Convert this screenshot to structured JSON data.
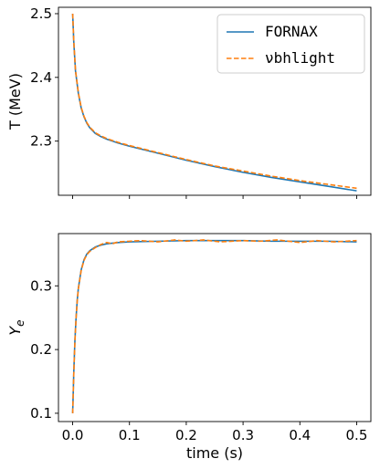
{
  "chart_data": [
    {
      "type": "line",
      "xlabel": "",
      "ylabel": "T (MeV)",
      "xlim": [
        -0.025,
        0.525
      ],
      "ylim": [
        2.215,
        2.51
      ],
      "xticks": [
        0.0,
        0.1,
        0.2,
        0.3,
        0.4,
        0.5
      ],
      "show_x_tick_labels": false,
      "yticks": [
        2.3,
        2.4,
        2.5
      ],
      "ytick_labels": [
        "2.3",
        "2.4",
        "2.5"
      ],
      "grid": false,
      "legend": "top-right",
      "series": [
        {
          "name": "FORNAX",
          "color": "#1f77b4",
          "style": "solid",
          "x": [
            0.0,
            0.002,
            0.005,
            0.01,
            0.015,
            0.02,
            0.025,
            0.03,
            0.04,
            0.05,
            0.06,
            0.08,
            0.1,
            0.15,
            0.2,
            0.25,
            0.3,
            0.35,
            0.4,
            0.45,
            0.5
          ],
          "y": [
            2.5,
            2.455,
            2.41,
            2.375,
            2.352,
            2.338,
            2.328,
            2.321,
            2.312,
            2.307,
            2.303,
            2.297,
            2.292,
            2.281,
            2.27,
            2.26,
            2.251,
            2.243,
            2.236,
            2.229,
            2.222
          ]
        },
        {
          "name": "νbhlight",
          "color": "#ff7f0e",
          "style": "dashed",
          "x": [
            0.0,
            0.002,
            0.005,
            0.01,
            0.015,
            0.02,
            0.025,
            0.03,
            0.04,
            0.05,
            0.06,
            0.08,
            0.1,
            0.15,
            0.2,
            0.25,
            0.3,
            0.35,
            0.4,
            0.45,
            0.5
          ],
          "y": [
            2.5,
            2.456,
            2.411,
            2.376,
            2.353,
            2.339,
            2.329,
            2.322,
            2.313,
            2.308,
            2.304,
            2.298,
            2.293,
            2.282,
            2.271,
            2.261,
            2.253,
            2.245,
            2.238,
            2.232,
            2.226
          ]
        }
      ]
    },
    {
      "type": "line",
      "xlabel": "time (s)",
      "ylabel": "Y_e",
      "xlim": [
        -0.025,
        0.525
      ],
      "ylim": [
        0.087,
        0.382
      ],
      "xticks": [
        0.0,
        0.1,
        0.2,
        0.3,
        0.4,
        0.5
      ],
      "xtick_labels": [
        "0.0",
        "0.1",
        "0.2",
        "0.3",
        "0.4",
        "0.5"
      ],
      "yticks": [
        0.1,
        0.2,
        0.3
      ],
      "ytick_labels": [
        "0.1",
        "0.2",
        "0.3"
      ],
      "grid": false,
      "series": [
        {
          "name": "FORNAX",
          "color": "#1f77b4",
          "style": "solid",
          "x": [
            0.0,
            0.002,
            0.004,
            0.006,
            0.008,
            0.01,
            0.015,
            0.02,
            0.025,
            0.03,
            0.04,
            0.05,
            0.06,
            0.08,
            0.1,
            0.15,
            0.2,
            0.25,
            0.3,
            0.35,
            0.4,
            0.45,
            0.5
          ],
          "y": [
            0.1,
            0.165,
            0.215,
            0.25,
            0.277,
            0.296,
            0.325,
            0.341,
            0.35,
            0.355,
            0.361,
            0.364,
            0.366,
            0.368,
            0.369,
            0.37,
            0.371,
            0.371,
            0.371,
            0.37,
            0.37,
            0.37,
            0.369
          ]
        },
        {
          "name": "νbhlight",
          "color": "#ff7f0e",
          "style": "dashed",
          "x": [
            0.0,
            0.002,
            0.004,
            0.006,
            0.008,
            0.01,
            0.015,
            0.02,
            0.025,
            0.03,
            0.04,
            0.05,
            0.06,
            0.07,
            0.08,
            0.1,
            0.12,
            0.15,
            0.18,
            0.2,
            0.23,
            0.26,
            0.3,
            0.33,
            0.36,
            0.4,
            0.43,
            0.46,
            0.5
          ],
          "y": [
            0.1,
            0.163,
            0.213,
            0.249,
            0.276,
            0.295,
            0.324,
            0.34,
            0.349,
            0.354,
            0.36,
            0.365,
            0.368,
            0.366,
            0.369,
            0.37,
            0.371,
            0.369,
            0.372,
            0.37,
            0.372,
            0.369,
            0.371,
            0.37,
            0.372,
            0.368,
            0.371,
            0.369,
            0.371
          ]
        }
      ]
    }
  ]
}
